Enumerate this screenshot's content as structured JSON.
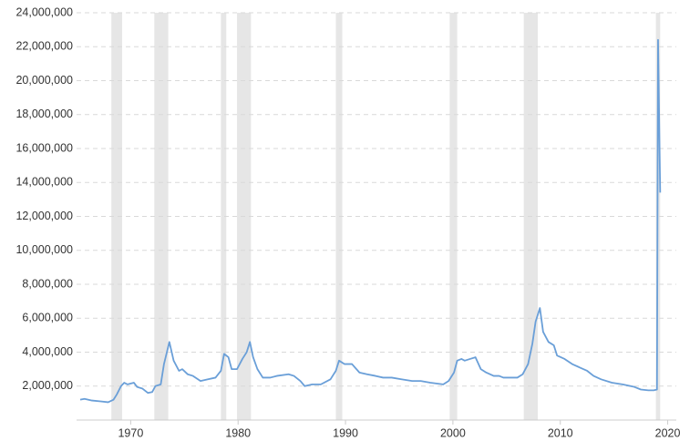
{
  "chart_data": {
    "type": "line",
    "x": [
      1965.3,
      1965.7,
      1966.4,
      1967.2,
      1967.9,
      1968.4,
      1968.7,
      1969.1,
      1969.4,
      1969.7,
      1970.3,
      1970.6,
      1971.1,
      1971.6,
      1972.0,
      1972.3,
      1972.8,
      1973.1,
      1973.6,
      1974.0,
      1974.5,
      1974.8,
      1975.3,
      1975.8,
      1976.5,
      1977.2,
      1977.9,
      1978.4,
      1978.7,
      1979.1,
      1979.4,
      1979.9,
      1980.4,
      1980.8,
      1981.1,
      1981.4,
      1981.8,
      1982.3,
      1983.0,
      1983.6,
      1984.7,
      1985.2,
      1985.8,
      1986.2,
      1986.9,
      1987.7,
      1988.6,
      1989.1,
      1989.4,
      1989.9,
      1990.6,
      1991.3,
      1992.0,
      1992.8,
      1993.5,
      1994.3,
      1995.2,
      1996.2,
      1997.0,
      1997.9,
      1999.1,
      1999.6,
      2000.1,
      2000.4,
      2000.8,
      2001.1,
      2001.6,
      2002.1,
      2002.6,
      2003.1,
      2003.8,
      2004.3,
      2004.7,
      2005.3,
      2006.0,
      2006.5,
      2007.0,
      2007.4,
      2007.7,
      2008.1,
      2008.4,
      2008.9,
      2009.4,
      2009.7,
      2010.4,
      2011.1,
      2011.8,
      2012.5,
      2013.1,
      2013.8,
      2014.8,
      2015.8,
      2016.9,
      2017.5,
      2018.2,
      2018.7,
      2019.0,
      2019.1,
      2019.3
    ],
    "values": [
      1200000,
      1250000,
      1150000,
      1100000,
      1050000,
      1200000,
      1500000,
      2000000,
      2200000,
      2100000,
      2200000,
      1950000,
      1850000,
      1600000,
      1650000,
      2000000,
      2100000,
      3300000,
      4600000,
      3500000,
      2900000,
      3000000,
      2700000,
      2600000,
      2300000,
      2400000,
      2500000,
      2900000,
      3900000,
      3700000,
      3000000,
      3000000,
      3600000,
      4000000,
      4600000,
      3700000,
      3000000,
      2500000,
      2500000,
      2600000,
      2700000,
      2600000,
      2300000,
      2000000,
      2100000,
      2100000,
      2400000,
      2900000,
      3500000,
      3300000,
      3300000,
      2800000,
      2700000,
      2600000,
      2500000,
      2500000,
      2400000,
      2300000,
      2300000,
      2200000,
      2100000,
      2300000,
      2800000,
      3500000,
      3600000,
      3500000,
      3600000,
      3700000,
      3000000,
      2800000,
      2600000,
      2600000,
      2500000,
      2500000,
      2500000,
      2700000,
      3300000,
      4500000,
      5800000,
      6600000,
      5200000,
      4600000,
      4400000,
      3800000,
      3600000,
      3300000,
      3100000,
      2900000,
      2600000,
      2400000,
      2200000,
      2100000,
      1950000,
      1800000,
      1750000,
      1750000,
      1800000,
      22400000,
      13400000
    ],
    "color": "#6a9fd8",
    "shaded_ranges": [
      [
        1968.2,
        1969.2
      ],
      [
        1972.2,
        1973.5
      ],
      [
        1978.4,
        1978.9
      ],
      [
        1979.9,
        1981.2
      ],
      [
        1989.1,
        1989.7
      ],
      [
        1999.7,
        2000.4
      ],
      [
        2006.6,
        2007.9
      ],
      [
        2018.9,
        2019.3
      ]
    ],
    "shade_color": "#e6e6e6",
    "xlim": [
      1965.3,
      2020.8
    ],
    "xticks": [
      1970,
      1980,
      1990,
      2000,
      2010,
      2020
    ],
    "ylim": [
      0,
      24000000
    ],
    "yticks": [
      {
        "value": 2000000,
        "label": "2,000,000"
      },
      {
        "value": 4000000,
        "label": "4,000,000"
      },
      {
        "value": 6000000,
        "label": "6,000,000"
      },
      {
        "value": 8000000,
        "label": "8,000,000"
      },
      {
        "value": 10000000,
        "label": "10,000,000"
      },
      {
        "value": 12000000,
        "label": "12,000,000"
      },
      {
        "value": 14000000,
        "label": "14,000,000"
      },
      {
        "value": 16000000,
        "label": "16,000,000"
      },
      {
        "value": 18000000,
        "label": "18,000,000"
      },
      {
        "value": 20000000,
        "label": "20,000,000"
      },
      {
        "value": 22000000,
        "label": "22,000,000"
      },
      {
        "value": 24000000,
        "label": "24,000,000"
      }
    ],
    "grid": true
  }
}
